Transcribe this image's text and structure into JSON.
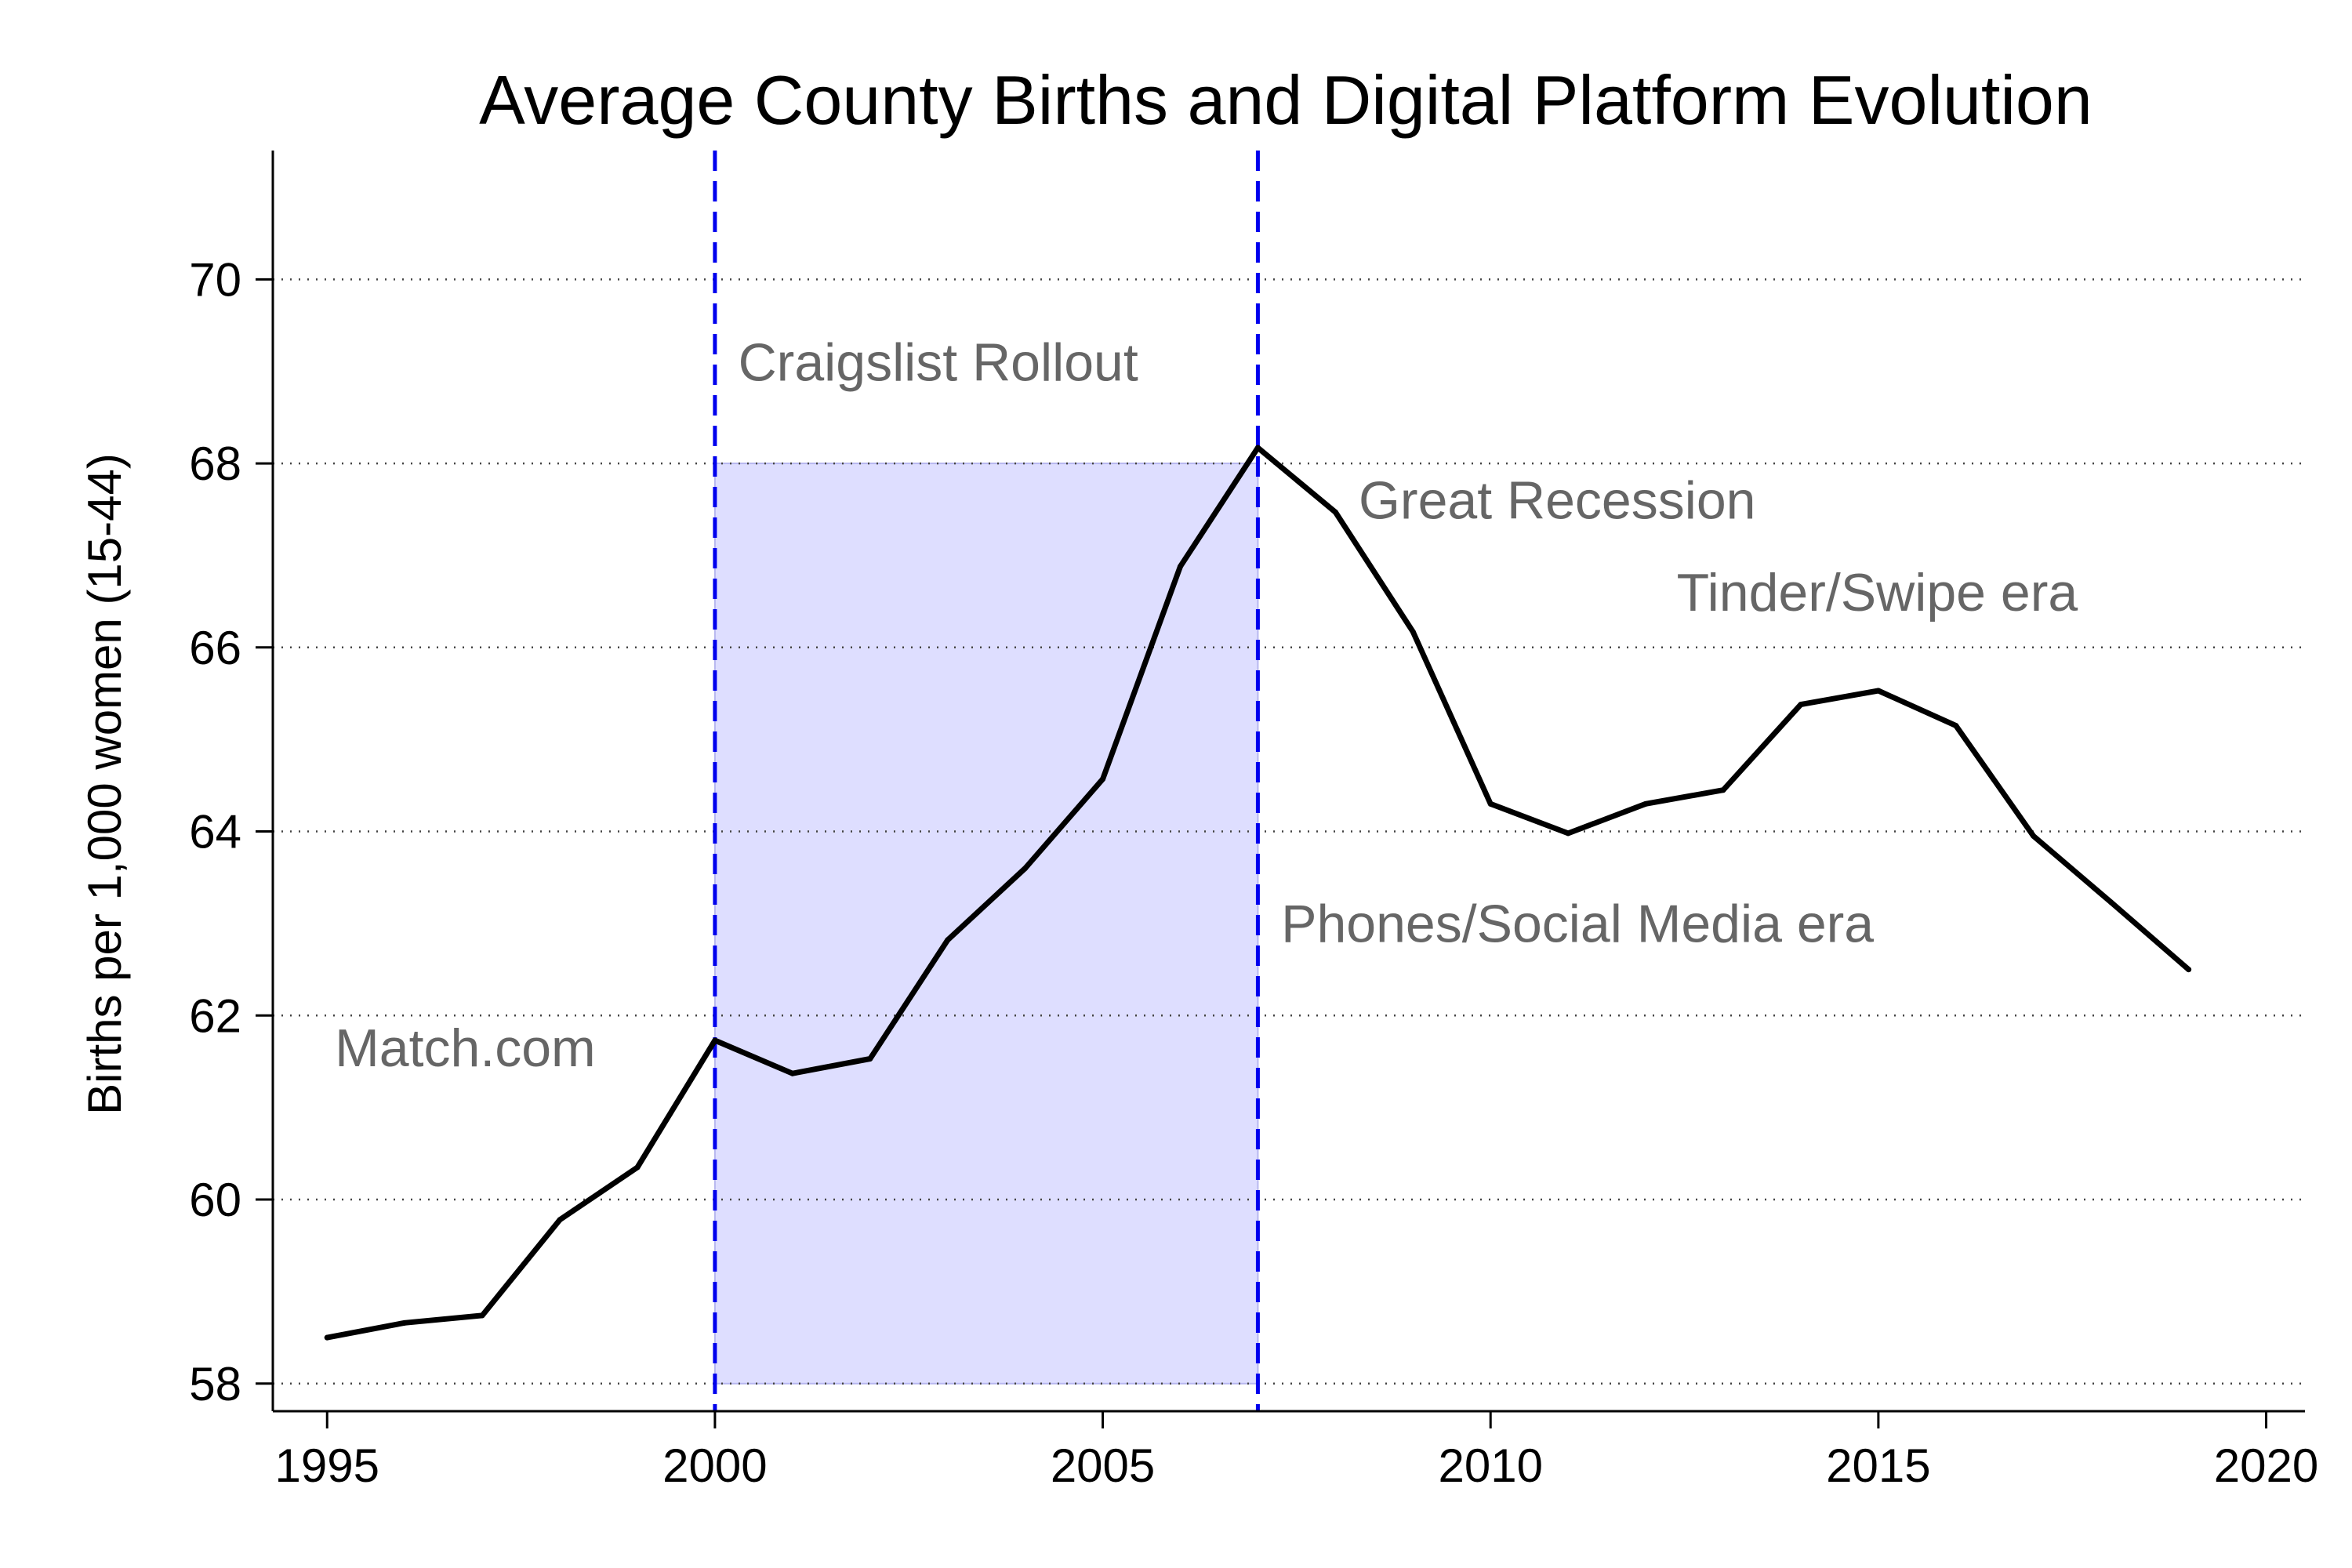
{
  "chart_data": {
    "type": "line",
    "title": "Average County Births and Digital Platform Evolution",
    "xlabel": "",
    "ylabel": "Births per 1,000 women (15-44)",
    "xlim": [
      1994.3,
      2020.5
    ],
    "ylim": [
      57.7,
      71.4
    ],
    "x_ticks": [
      1995,
      2000,
      2005,
      2010,
      2015,
      2020
    ],
    "y_ticks": [
      58,
      60,
      62,
      64,
      66,
      68,
      70
    ],
    "grid": "horizontal-dotted",
    "series": [
      {
        "x": [
          1995,
          1996,
          1997,
          1998,
          1999,
          2000,
          2001,
          2002,
          2003,
          2004,
          2005,
          2006,
          2007,
          2008,
          2009,
          2010,
          2011,
          2012,
          2013,
          2014,
          2015,
          2016,
          2017,
          2018,
          2019
        ],
        "values": [
          58.5,
          58.66,
          58.74,
          59.78,
          60.35,
          61.73,
          61.37,
          61.53,
          62.82,
          63.6,
          64.57,
          66.88,
          68.17,
          67.47,
          66.17,
          64.3,
          63.98,
          64.3,
          64.45,
          65.38,
          65.53,
          65.15,
          63.95,
          63.23,
          62.5
        ]
      }
    ],
    "shaded_region": {
      "x": [
        2000,
        2007
      ],
      "y": [
        58,
        68
      ],
      "color": "#dedeff"
    },
    "vlines": [
      {
        "x": 2000,
        "color": "#0000ee",
        "style": "dashed"
      },
      {
        "x": 2007,
        "color": "#0000ee",
        "style": "dashed"
      }
    ],
    "annotations": [
      {
        "text": "Craigslist Rollout",
        "x": 2000.3,
        "y": 68.9
      },
      {
        "text": "Great Recession",
        "x": 2008.3,
        "y": 67.4
      },
      {
        "text": "Tinder/Swipe era",
        "x": 2012.4,
        "y": 66.4
      },
      {
        "text": "Phones/Social Media era",
        "x": 2007.3,
        "y": 62.8
      },
      {
        "text": "Match.com",
        "x": 1995.1,
        "y": 61.45
      }
    ],
    "colors": {
      "line": "#000000",
      "grid": "#444444",
      "annotation": "#666666"
    }
  }
}
